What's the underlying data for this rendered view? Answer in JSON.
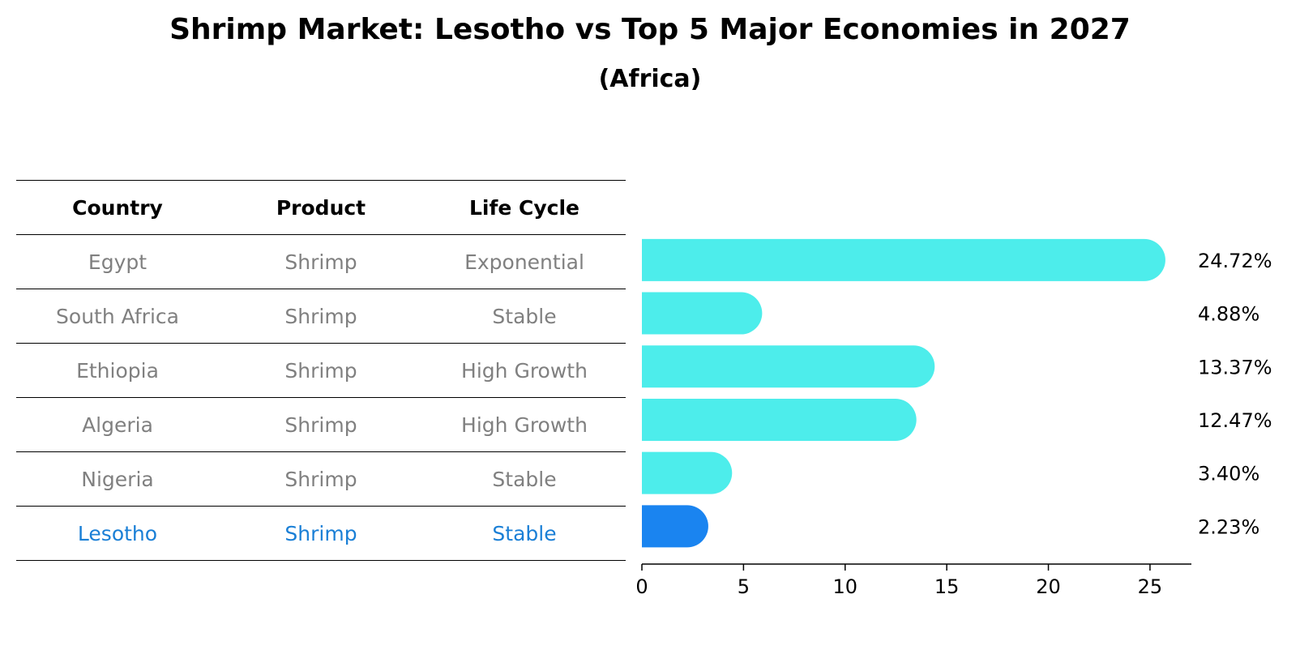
{
  "title": "Shrimp Market: Lesotho vs Top 5 Major Economies in 2027",
  "subtitle": "(Africa)",
  "table": {
    "headers": [
      "Country",
      "Product",
      "Life Cycle"
    ],
    "rows": [
      [
        "Egypt",
        "Shrimp",
        "Exponential"
      ],
      [
        "South Africa",
        "Shrimp",
        "Stable"
      ],
      [
        "Ethiopia",
        "Shrimp",
        "High Growth"
      ],
      [
        "Algeria",
        "Shrimp",
        "High Growth"
      ],
      [
        "Nigeria",
        "Shrimp",
        "Stable"
      ],
      [
        "Lesotho",
        "Shrimp",
        "Stable"
      ]
    ]
  },
  "colors": {
    "bar": "#4DEDEB",
    "highlight": "#1A84F0",
    "highlight_text": "#1A7FD6",
    "muted_text": "#808080"
  },
  "chart_data": {
    "type": "bar",
    "orientation": "horizontal",
    "categories": [
      "Egypt",
      "South Africa",
      "Ethiopia",
      "Algeria",
      "Nigeria",
      "Lesotho"
    ],
    "values": [
      24.72,
      4.88,
      13.37,
      12.47,
      3.4,
      2.23
    ],
    "value_labels": [
      "24.72%",
      "4.88%",
      "13.37%",
      "12.47%",
      "3.40%",
      "2.23%"
    ],
    "highlight": "Lesotho",
    "xlim": [
      0,
      26
    ],
    "xticks": [
      0,
      5,
      10,
      15,
      20,
      25
    ],
    "title": "Shrimp Market: Lesotho vs Top 5 Major Economies in 2027",
    "subtitle": "(Africa)",
    "grid": false
  }
}
